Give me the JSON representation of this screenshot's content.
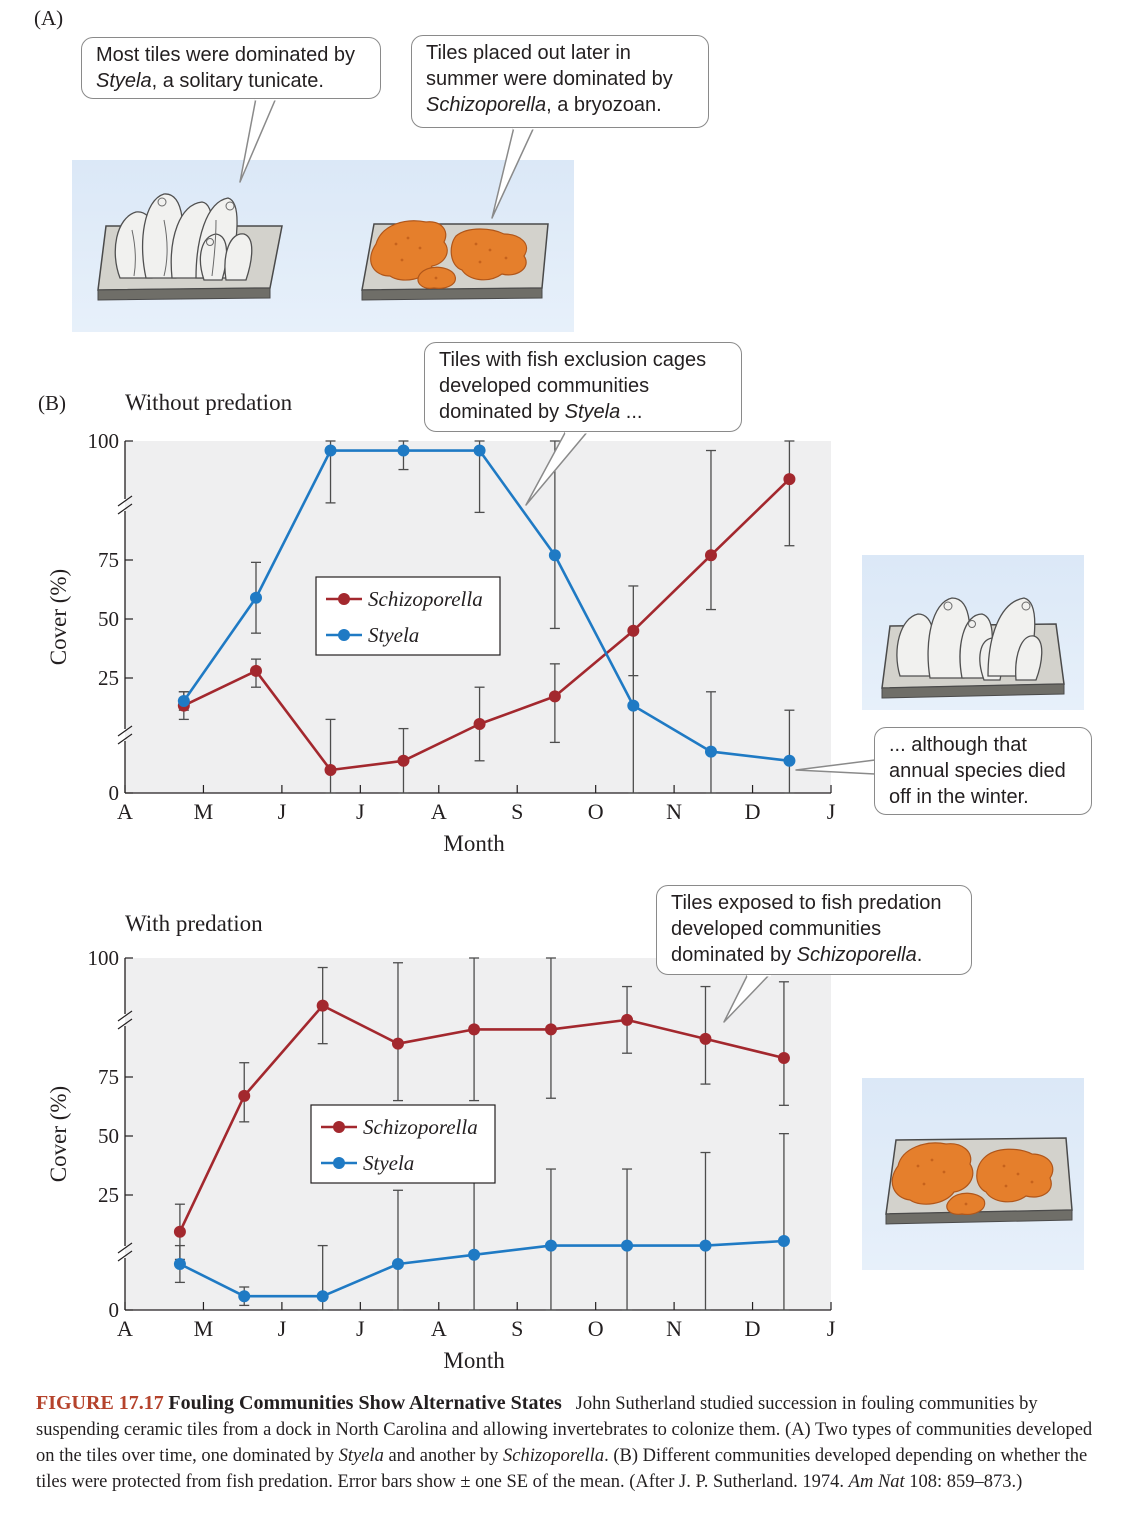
{
  "panel_a": {
    "label": "(A)",
    "callout_styela": {
      "pre": "Most tiles were dominated by ",
      "em": "Styela",
      "post": ", a solitary tunicate."
    },
    "callout_schizo": {
      "pre": "Tiles placed out later in summer were dominated by ",
      "em": "Schizoporella",
      "post": ", a bryozoan."
    }
  },
  "panel_b": {
    "label": "(B)",
    "callout_cages": {
      "pre": "Tiles with fish exclusion cages developed communities dominated by ",
      "em": "Styela",
      "post": " ..."
    },
    "callout_annual": {
      "text": "... although that annual species died off in the winter."
    },
    "callout_predation": {
      "pre": "Tiles exposed to fish predation developed communities dominated by ",
      "em": "Schizoporella",
      "post": "."
    }
  },
  "colors": {
    "schizoporella": "#a3282e",
    "styela": "#1f7ac4",
    "plot_bg": "#efeff0",
    "panel_blue": "#dde9f7",
    "tile_orange": "#e57f2c"
  },
  "chart_data": [
    {
      "type": "line",
      "title": "Without predation",
      "xlabel": "Month",
      "ylabel": "Cover (%)",
      "x_ticks": [
        "A",
        "M",
        "J",
        "J",
        "A",
        "S",
        "O",
        "N",
        "D",
        "J"
      ],
      "y_ticks": [
        "0",
        "25",
        "50",
        "75",
        "100"
      ],
      "axis_breaks": true,
      "legend": "center-left",
      "series": [
        {
          "name": "Schizoporella",
          "x": [
            0.75,
            1.67,
            2.62,
            3.55,
            4.52,
            5.48,
            6.48,
            7.47,
            8.47
          ],
          "y": [
            19,
            28,
            5,
            7,
            15,
            21,
            45,
            76,
            92
          ],
          "err": [
            3,
            5,
            11,
            7,
            8,
            10,
            19,
            22,
            14
          ]
        },
        {
          "name": "Styela",
          "x": [
            0.75,
            1.67,
            2.62,
            3.55,
            4.52,
            5.48,
            6.48,
            7.47,
            8.47
          ],
          "y": [
            20,
            59,
            98,
            98,
            98,
            76,
            19,
            9,
            7
          ],
          "err": [
            2,
            15,
            11,
            4,
            13,
            30,
            27,
            13,
            11
          ]
        }
      ]
    },
    {
      "type": "line",
      "title": "With predation",
      "xlabel": "Month",
      "ylabel": "Cover (%)",
      "x_ticks": [
        "A",
        "M",
        "J",
        "J",
        "A",
        "S",
        "O",
        "N",
        "D",
        "J"
      ],
      "y_ticks": [
        "0",
        "25",
        "50",
        "75",
        "100"
      ],
      "axis_breaks": true,
      "legend": "center-left",
      "series": [
        {
          "name": "Schizoporella",
          "x": [
            0.7,
            1.52,
            2.52,
            3.48,
            4.45,
            5.43,
            6.4,
            7.4,
            8.4
          ],
          "y": [
            17,
            67,
            90,
            82,
            85,
            85,
            87,
            83,
            79
          ],
          "err": [
            6,
            11,
            8,
            17,
            20,
            19,
            7,
            11,
            16
          ]
        },
        {
          "name": "Styela",
          "x": [
            0.7,
            1.52,
            2.52,
            3.48,
            4.45,
            5.43,
            6.4,
            7.4,
            8.4
          ],
          "y": [
            10,
            3,
            3,
            10,
            12,
            14,
            14,
            14,
            15
          ],
          "err": [
            4,
            2,
            11,
            17,
            21,
            22,
            22,
            29,
            36
          ]
        }
      ]
    }
  ],
  "caption": {
    "figure_number": "FIGURE 17.17",
    "figure_title": "Fouling Communities Show Alternative States",
    "t1": "John Sutherland studied succession in fouling communities by suspending ceramic tiles from a dock in North Carolina and allowing invertebrates to colonize them. (A) Two types of communities developed on the tiles over time, one dominated by ",
    "e1": "Styela",
    "t2": " and another by ",
    "e2": "Schizoporella",
    "t3": ". (B) Different communities developed depending on whether the tiles were protected from fish predation. Error bars show ± one SE of the mean. (After J. P. Sutherland. 1974. ",
    "e3": "Am Nat",
    "t4": " 108: 859–873.)"
  }
}
